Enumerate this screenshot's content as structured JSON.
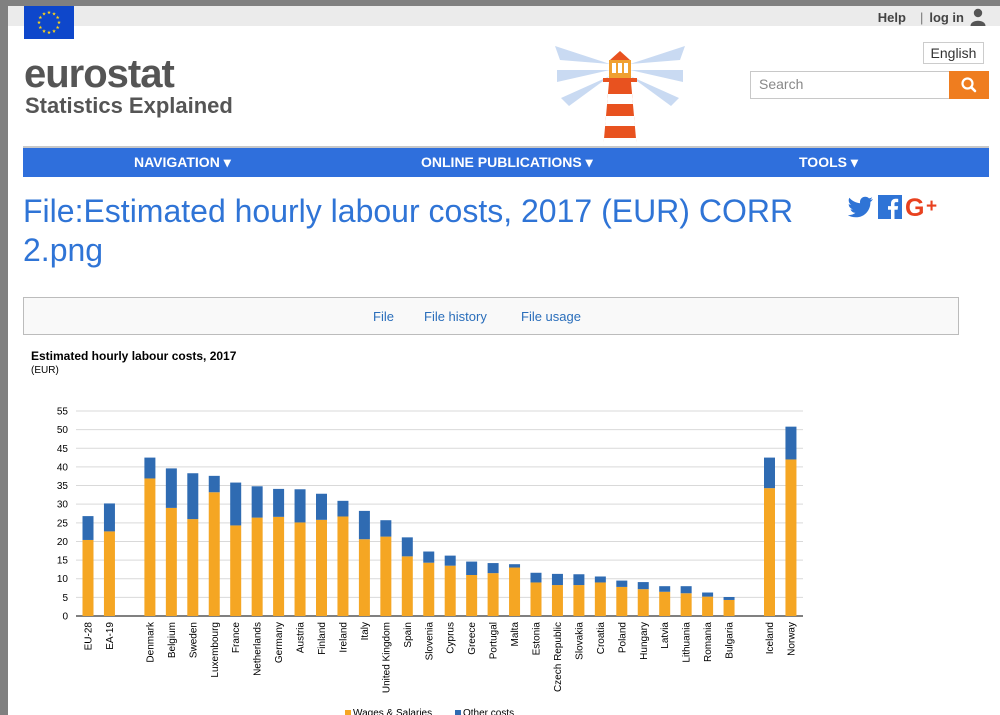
{
  "header": {
    "help": "Help",
    "login": "log in",
    "logo_main": "eurostat",
    "logo_sub": "Statistics Explained",
    "language": "English",
    "search_placeholder": "Search"
  },
  "nav": {
    "items": [
      "NAVIGATION",
      "ONLINE PUBLICATIONS",
      "TOOLS"
    ]
  },
  "page_title": "File:Estimated hourly labour costs, 2017 (EUR) CORR 2.png",
  "social": [
    "twitter-icon",
    "facebook-icon",
    "google-plus-icon"
  ],
  "tabs": [
    "File",
    "File history",
    "File usage"
  ],
  "colors": {
    "eu_blue": "#0e47cb",
    "nav_blue": "#2f6fdc",
    "orange": "#ef7d1f",
    "wages": "#f5a623",
    "other": "#2f6bb2",
    "title_blue": "#2f74d6"
  },
  "chart_data": {
    "type": "bar",
    "stacked": true,
    "title": "Estimated hourly labour costs, 2017",
    "subtitle": "(EUR)",
    "ylim": [
      0,
      55
    ],
    "yticks": [
      0,
      5,
      10,
      15,
      20,
      25,
      30,
      35,
      40,
      45,
      50,
      55
    ],
    "grid": true,
    "legend_position": "bottom",
    "categories": [
      "EU-28",
      "EA-19",
      "Denmark",
      "Belgium",
      "Sweden",
      "Luxembourg",
      "France",
      "Netherlands",
      "Germany",
      "Austria",
      "Finland",
      "Ireland",
      "Italy",
      "United Kingdom",
      "Spain",
      "Slovenia",
      "Cyprus",
      "Greece",
      "Portugal",
      "Malta",
      "Estonia",
      "Czech Republic",
      "Slovakia",
      "Croatia",
      "Poland",
      "Hungary",
      "Latvia",
      "Lithuania",
      "Romania",
      "Bulgaria",
      "Iceland",
      "Norway"
    ],
    "series": [
      {
        "name": "Wages & Salaries",
        "values": [
          20.4,
          22.7,
          36.9,
          29.0,
          26.0,
          33.2,
          24.3,
          26.4,
          26.6,
          25.1,
          25.8,
          26.7,
          20.6,
          21.3,
          16.0,
          14.3,
          13.5,
          11.0,
          11.5,
          13.0,
          9.0,
          8.3,
          8.3,
          9.0,
          7.8,
          7.2,
          6.5,
          6.1,
          5.2,
          4.3,
          34.3,
          42.0
        ]
      },
      {
        "name": "Other costs",
        "values": [
          6.4,
          7.5,
          5.6,
          10.6,
          12.3,
          4.4,
          11.5,
          8.4,
          7.5,
          8.9,
          7.0,
          4.2,
          7.6,
          4.4,
          5.1,
          3.0,
          2.7,
          3.6,
          2.7,
          0.9,
          2.6,
          3.0,
          2.9,
          1.6,
          1.7,
          1.9,
          1.5,
          1.9,
          1.1,
          0.8,
          8.2,
          8.8
        ]
      }
    ]
  }
}
